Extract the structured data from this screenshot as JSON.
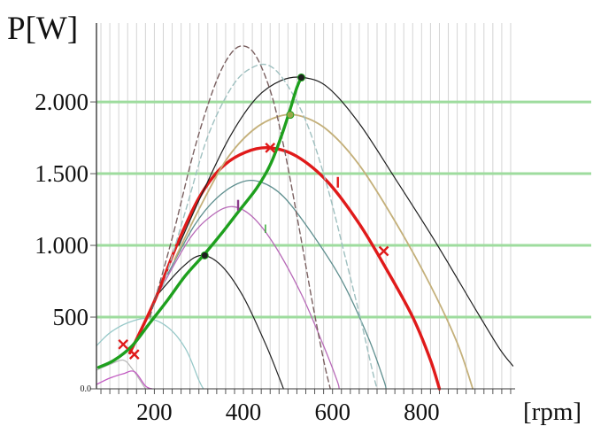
{
  "chart_data": {
    "type": "line",
    "ylabel": "P[W]",
    "xlabel": "[rpm]",
    "xlim": [
      70,
      1010
    ],
    "ylim": [
      0,
      2550
    ],
    "x_ticks": [
      {
        "value": 200,
        "label": "200"
      },
      {
        "value": 400,
        "label": "400"
      },
      {
        "value": 600,
        "label": "600"
      },
      {
        "value": 800,
        "label": "800"
      }
    ],
    "y_ticks": [
      {
        "value": 0,
        "label": "0.0"
      },
      {
        "value": 500,
        "label": "500"
      },
      {
        "value": 1000,
        "label": "1.000"
      },
      {
        "value": 1500,
        "label": "1.500"
      },
      {
        "value": 2000,
        "label": "2.000"
      }
    ],
    "minor_x_step": 20,
    "horizontal_grid_color": "#9edc9e",
    "vertical_grid_color": "#d4d4d4",
    "annotation": "I",
    "series": [
      {
        "color": "#98c9c9",
        "style": "solid",
        "width": 1.3,
        "points": [
          [
            70,
            300
          ],
          [
            100,
            390
          ],
          [
            140,
            460
          ],
          [
            185,
            490
          ],
          [
            230,
            430
          ],
          [
            270,
            280
          ],
          [
            300,
            60
          ],
          [
            310,
            0
          ]
        ]
      },
      {
        "color": "#b7b7b7",
        "style": "solid",
        "width": 1.2,
        "points": [
          [
            70,
            130
          ],
          [
            100,
            170
          ],
          [
            130,
            200
          ],
          [
            150,
            140
          ],
          [
            180,
            0
          ]
        ]
      },
      {
        "color": "#c25bc2",
        "style": "solid",
        "width": 1.3,
        "points": [
          [
            70,
            30
          ],
          [
            100,
            75
          ],
          [
            130,
            105
          ],
          [
            155,
            120
          ],
          [
            180,
            20
          ],
          [
            195,
            0
          ]
        ]
      },
      {
        "color": "#222222",
        "style": "solid",
        "width": 1.2,
        "points": [
          [
            200,
            630
          ],
          [
            260,
            840
          ],
          [
            305,
            930
          ],
          [
            350,
            860
          ],
          [
            400,
            640
          ],
          [
            450,
            310
          ],
          [
            480,
            80
          ],
          [
            490,
            0
          ]
        ]
      },
      {
        "color": "#b86ab8",
        "style": "solid",
        "width": 1.3,
        "points": [
          [
            215,
            700
          ],
          [
            280,
            1050
          ],
          [
            330,
            1210
          ],
          [
            375,
            1270
          ],
          [
            420,
            1200
          ],
          [
            470,
            1000
          ],
          [
            530,
            660
          ],
          [
            580,
            300
          ],
          [
            610,
            60
          ],
          [
            615,
            0
          ]
        ]
      },
      {
        "color": "#5f8f8f",
        "style": "solid",
        "width": 1.3,
        "points": [
          [
            230,
            800
          ],
          [
            290,
            1140
          ],
          [
            340,
            1330
          ],
          [
            395,
            1440
          ],
          [
            440,
            1440
          ],
          [
            490,
            1340
          ],
          [
            550,
            1100
          ],
          [
            620,
            760
          ],
          [
            680,
            360
          ],
          [
            715,
            60
          ],
          [
            720,
            0
          ]
        ]
      },
      {
        "color": "#e01a1a",
        "style": "solid",
        "width": 3.4,
        "points": [
          [
            145,
            250
          ],
          [
            200,
            610
          ],
          [
            250,
            1000
          ],
          [
            300,
            1330
          ],
          [
            350,
            1540
          ],
          [
            405,
            1650
          ],
          [
            460,
            1680
          ],
          [
            520,
            1620
          ],
          [
            590,
            1440
          ],
          [
            660,
            1150
          ],
          [
            720,
            840
          ],
          [
            780,
            500
          ],
          [
            820,
            200
          ],
          [
            840,
            0
          ]
        ]
      },
      {
        "color": "#c4b07a",
        "style": "solid",
        "width": 1.8,
        "points": [
          [
            245,
            900
          ],
          [
            300,
            1250
          ],
          [
            360,
            1590
          ],
          [
            420,
            1800
          ],
          [
            480,
            1900
          ],
          [
            530,
            1900
          ],
          [
            590,
            1800
          ],
          [
            660,
            1560
          ],
          [
            740,
            1170
          ],
          [
            820,
            720
          ],
          [
            880,
            320
          ],
          [
            915,
            0
          ]
        ]
      },
      {
        "color": "#1e1e1e",
        "style": "solid",
        "width": 1.2,
        "points": [
          [
            255,
            1000
          ],
          [
            310,
            1380
          ],
          [
            370,
            1760
          ],
          [
            430,
            2030
          ],
          [
            485,
            2150
          ],
          [
            535,
            2170
          ],
          [
            590,
            2100
          ],
          [
            660,
            1850
          ],
          [
            740,
            1470
          ],
          [
            830,
            1030
          ],
          [
            920,
            560
          ],
          [
            975,
            280
          ],
          [
            1005,
            160
          ]
        ]
      },
      {
        "color": "#7a6060",
        "style": "dashed",
        "width": 1.4,
        "points": [
          [
            190,
            500
          ],
          [
            240,
            1050
          ],
          [
            290,
            1670
          ],
          [
            335,
            2110
          ],
          [
            370,
            2330
          ],
          [
            400,
            2390
          ],
          [
            430,
            2310
          ],
          [
            465,
            2030
          ],
          [
            495,
            1620
          ],
          [
            525,
            1120
          ],
          [
            555,
            600
          ],
          [
            580,
            200
          ],
          [
            595,
            0
          ]
        ]
      },
      {
        "color": "#9fc0c0",
        "style": "dashed",
        "width": 1.4,
        "points": [
          [
            220,
            720
          ],
          [
            270,
            1240
          ],
          [
            320,
            1760
          ],
          [
            375,
            2110
          ],
          [
            420,
            2240
          ],
          [
            460,
            2250
          ],
          [
            500,
            2110
          ],
          [
            545,
            1830
          ],
          [
            590,
            1390
          ],
          [
            630,
            900
          ],
          [
            665,
            460
          ],
          [
            690,
            120
          ],
          [
            700,
            0
          ]
        ]
      },
      {
        "color": "#1ea01e",
        "style": "solid",
        "width": 3.4,
        "points": [
          [
            75,
            150
          ],
          [
            110,
            200
          ],
          [
            150,
            300
          ],
          [
            190,
            460
          ],
          [
            230,
            620
          ],
          [
            270,
            790
          ],
          [
            310,
            930
          ],
          [
            350,
            1080
          ],
          [
            390,
            1240
          ],
          [
            430,
            1400
          ],
          [
            460,
            1560
          ],
          [
            485,
            1760
          ],
          [
            505,
            1950
          ],
          [
            520,
            2100
          ],
          [
            530,
            2170
          ]
        ]
      }
    ],
    "markers": [
      {
        "x": 130,
        "y": 310,
        "shape": "cross",
        "color": "#e01a1a"
      },
      {
        "x": 155,
        "y": 240,
        "shape": "cross",
        "color": "#e01a1a"
      },
      {
        "x": 313,
        "y": 930,
        "shape": "dot",
        "color": "#1e1e1e"
      },
      {
        "x": 460,
        "y": 1680,
        "shape": "cross",
        "color": "#e01a1a"
      },
      {
        "x": 530,
        "y": 2170,
        "shape": "dot",
        "color": "#1e1e1e"
      },
      {
        "x": 505,
        "y": 1910,
        "shape": "dot",
        "color": "#9aa84a"
      },
      {
        "x": 612,
        "y": 1440,
        "shape": "tick",
        "color": "#e01a1a"
      },
      {
        "x": 715,
        "y": 960,
        "shape": "cross",
        "color": "#e01a1a"
      },
      {
        "x": 388,
        "y": 1280,
        "shape": "tick",
        "color": "#8a3c8a"
      }
    ]
  }
}
